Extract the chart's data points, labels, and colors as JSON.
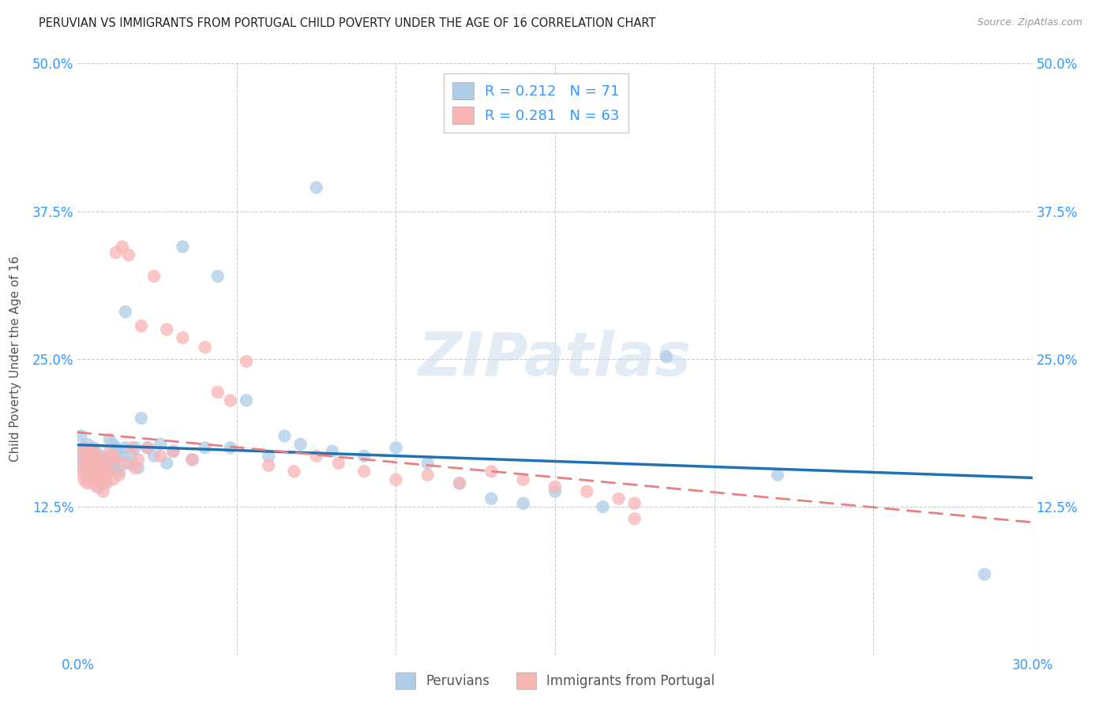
{
  "title": "PERUVIAN VS IMMIGRANTS FROM PORTUGAL CHILD POVERTY UNDER THE AGE OF 16 CORRELATION CHART",
  "source": "Source: ZipAtlas.com",
  "ylabel": "Child Poverty Under the Age of 16",
  "xlim": [
    0.0,
    0.3
  ],
  "ylim": [
    0.0,
    0.5
  ],
  "xticks": [
    0.0,
    0.05,
    0.1,
    0.15,
    0.2,
    0.25,
    0.3
  ],
  "xticklabels": [
    "0.0%",
    "",
    "",
    "",
    "",
    "",
    "30.0%"
  ],
  "yticks": [
    0.0,
    0.125,
    0.25,
    0.375,
    0.5
  ],
  "yticklabels": [
    "",
    "12.5%",
    "25.0%",
    "37.5%",
    "50.0%"
  ],
  "legend_labels": [
    "Peruvians",
    "Immigrants from Portugal"
  ],
  "series1_R": "0.212",
  "series1_N": "71",
  "series2_R": "0.281",
  "series2_N": "63",
  "color_blue": "#aecde8",
  "color_blue_fill": "#aecde8",
  "color_pink": "#f9b4b4",
  "color_blue_line": "#2171b5",
  "color_pink_line": "#e88080",
  "watermark": "ZIPatlas",
  "peruvian_x": [
    0.001,
    0.001,
    0.001,
    0.002,
    0.002,
    0.002,
    0.003,
    0.003,
    0.003,
    0.004,
    0.004,
    0.004,
    0.005,
    0.005,
    0.005,
    0.005,
    0.006,
    0.006,
    0.006,
    0.007,
    0.007,
    0.007,
    0.008,
    0.008,
    0.008,
    0.009,
    0.009,
    0.01,
    0.01,
    0.01,
    0.011,
    0.011,
    0.012,
    0.012,
    0.013,
    0.013,
    0.014,
    0.015,
    0.015,
    0.016,
    0.017,
    0.018,
    0.019,
    0.02,
    0.022,
    0.024,
    0.026,
    0.028,
    0.03,
    0.033,
    0.036,
    0.04,
    0.044,
    0.048,
    0.053,
    0.06,
    0.065,
    0.07,
    0.075,
    0.08,
    0.09,
    0.1,
    0.11,
    0.12,
    0.13,
    0.14,
    0.15,
    0.165,
    0.185,
    0.22,
    0.285
  ],
  "peruvian_y": [
    0.185,
    0.17,
    0.162,
    0.175,
    0.168,
    0.155,
    0.178,
    0.16,
    0.15,
    0.172,
    0.162,
    0.148,
    0.175,
    0.165,
    0.155,
    0.145,
    0.17,
    0.16,
    0.148,
    0.168,
    0.158,
    0.142,
    0.165,
    0.155,
    0.145,
    0.162,
    0.148,
    0.182,
    0.168,
    0.155,
    0.178,
    0.162,
    0.175,
    0.158,
    0.172,
    0.155,
    0.168,
    0.29,
    0.175,
    0.162,
    0.168,
    0.175,
    0.158,
    0.2,
    0.175,
    0.168,
    0.178,
    0.162,
    0.172,
    0.345,
    0.165,
    0.175,
    0.32,
    0.175,
    0.215,
    0.168,
    0.185,
    0.178,
    0.395,
    0.172,
    0.168,
    0.175,
    0.162,
    0.145,
    0.132,
    0.128,
    0.138,
    0.125,
    0.252,
    0.152,
    0.068
  ],
  "portugal_x": [
    0.001,
    0.001,
    0.002,
    0.002,
    0.002,
    0.003,
    0.003,
    0.003,
    0.004,
    0.004,
    0.005,
    0.005,
    0.005,
    0.006,
    0.006,
    0.006,
    0.007,
    0.007,
    0.008,
    0.008,
    0.008,
    0.009,
    0.009,
    0.01,
    0.01,
    0.011,
    0.011,
    0.012,
    0.012,
    0.013,
    0.014,
    0.015,
    0.016,
    0.017,
    0.018,
    0.019,
    0.02,
    0.022,
    0.024,
    0.026,
    0.028,
    0.03,
    0.033,
    0.036,
    0.04,
    0.044,
    0.048,
    0.053,
    0.06,
    0.068,
    0.075,
    0.082,
    0.09,
    0.1,
    0.11,
    0.12,
    0.13,
    0.14,
    0.15,
    0.16,
    0.17,
    0.175,
    0.175
  ],
  "portugal_y": [
    0.168,
    0.155,
    0.175,
    0.16,
    0.148,
    0.17,
    0.158,
    0.145,
    0.165,
    0.152,
    0.172,
    0.158,
    0.145,
    0.168,
    0.155,
    0.142,
    0.165,
    0.15,
    0.162,
    0.148,
    0.138,
    0.158,
    0.145,
    0.172,
    0.155,
    0.168,
    0.148,
    0.34,
    0.165,
    0.152,
    0.345,
    0.162,
    0.338,
    0.175,
    0.158,
    0.165,
    0.278,
    0.175,
    0.32,
    0.168,
    0.275,
    0.172,
    0.268,
    0.165,
    0.26,
    0.222,
    0.215,
    0.248,
    0.16,
    0.155,
    0.168,
    0.162,
    0.155,
    0.148,
    0.152,
    0.145,
    0.155,
    0.148,
    0.142,
    0.138,
    0.132,
    0.128,
    0.115
  ]
}
